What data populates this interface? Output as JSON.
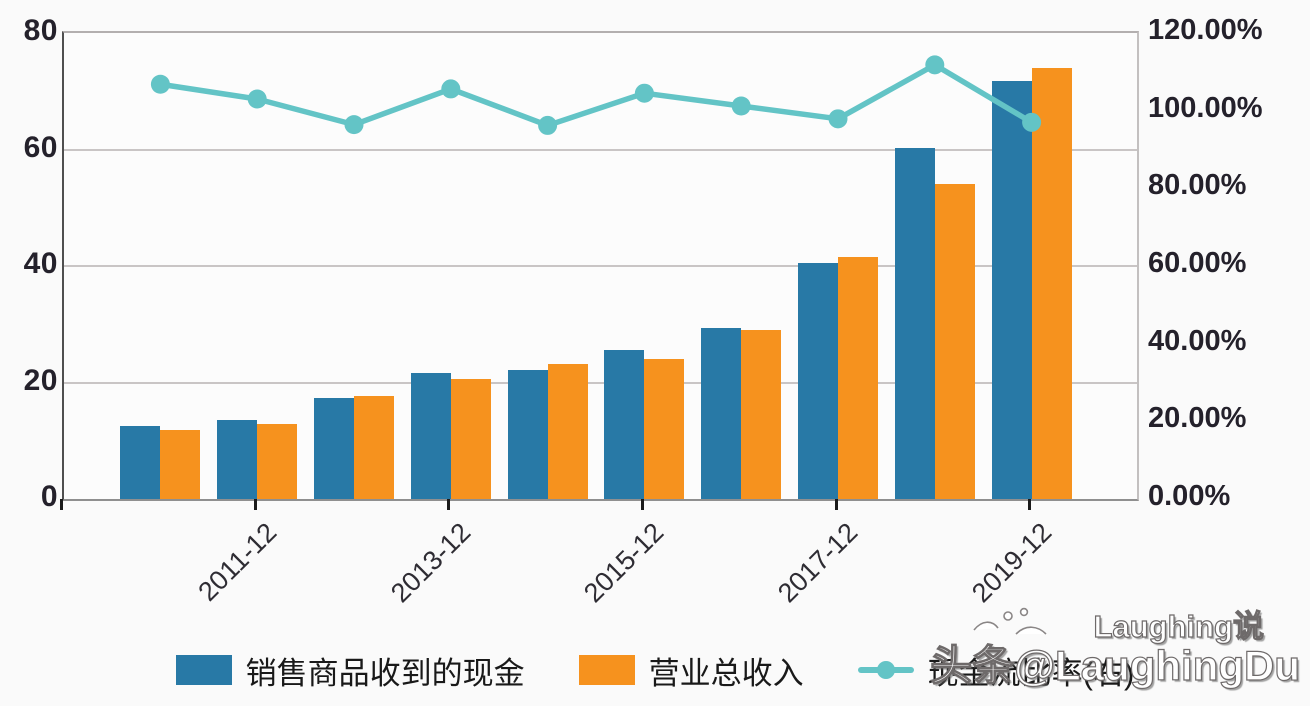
{
  "chart_data": {
    "type": "bar",
    "subtype": "grouped-bars-with-line-overlay",
    "n_groups": 10,
    "x_ticks": [
      {
        "label": "2011-12",
        "group_index": 1
      },
      {
        "label": "2013-12",
        "group_index": 3
      },
      {
        "label": "2015-12",
        "group_index": 5
      },
      {
        "label": "2017-12",
        "group_index": 7
      },
      {
        "label": "2019-12",
        "group_index": 9
      }
    ],
    "series": [
      {
        "name": "销售商品收到的现金",
        "type": "bar",
        "axis": "left",
        "color": "#2879a6",
        "values": [
          12.6,
          13.6,
          17.3,
          21.6,
          22.1,
          25.5,
          29.3,
          40.6,
          60.2,
          71.8
        ]
      },
      {
        "name": "营业总收入",
        "type": "bar",
        "axis": "left",
        "color": "#f6921e",
        "values": [
          11.8,
          12.9,
          17.7,
          20.6,
          23.1,
          24.1,
          29.0,
          41.5,
          54.0,
          74.0
        ]
      },
      {
        "name": "现金流比率(右)",
        "type": "line",
        "axis": "right",
        "color": "#63c4c6",
        "values_pct": [
          106.8,
          103.0,
          96.4,
          105.6,
          96.2,
          104.5,
          101.2,
          97.9,
          111.8,
          97.0
        ]
      }
    ],
    "left_axis": {
      "ticks": [
        0,
        20,
        40,
        60,
        80
      ],
      "min": 0,
      "max": 80
    },
    "right_axis": {
      "tick_labels": [
        "0.00%",
        "20.00%",
        "40.00%",
        "60.00%",
        "80.00%",
        "100.00%",
        "120.00%"
      ],
      "min_pct": 0,
      "max_pct": 120
    },
    "grid": "horizontal",
    "legend_position": "bottom",
    "title": "",
    "xlabel": "",
    "ylabel": ""
  },
  "watermark": {
    "line1": "Laughing说",
    "line2": "头条@LaughingDu"
  },
  "colors": {
    "bar_blue": "#2879a6",
    "bar_orange": "#f6921e",
    "line_teal": "#63c4c6",
    "background": "#fafafa"
  }
}
